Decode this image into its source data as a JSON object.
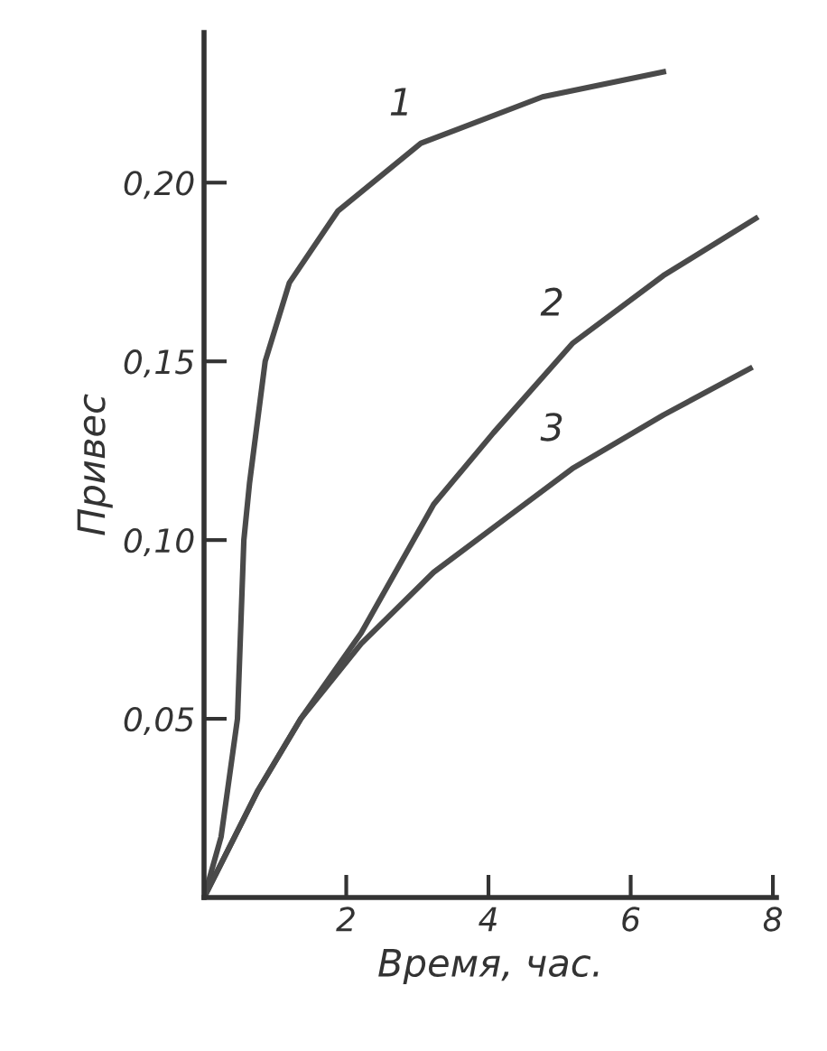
{
  "chart_data": {
    "type": "line",
    "xlabel": "Время, час.",
    "ylabel": "Привес",
    "xlim": [
      0,
      8.05
    ],
    "ylim": [
      0,
      0.242
    ],
    "xticks": [
      2,
      4,
      6,
      8
    ],
    "yticks": [
      {
        "value": 0.05,
        "label": "0,05"
      },
      {
        "value": 0.1,
        "label": "0,10"
      },
      {
        "value": 0.15,
        "label": "0,15"
      },
      {
        "value": 0.2,
        "label": "0,20"
      }
    ],
    "grid": false,
    "legend": false,
    "marker": "none",
    "line_style": "solid",
    "series": [
      {
        "name": "1",
        "color": "#4a4a4a",
        "x": [
          0,
          0.24,
          0.47,
          0.56,
          0.64,
          0.86,
          1.2,
          1.88,
          3.05,
          4.76,
          6.46
        ],
        "values": [
          0,
          0.017,
          0.05,
          0.1,
          0.116,
          0.15,
          0.172,
          0.192,
          0.211,
          0.224,
          0.231
        ]
      },
      {
        "name": "2",
        "color": "#4a4a4a",
        "x": [
          0,
          0.76,
          1.36,
          2.21,
          3.23,
          4.07,
          5.18,
          6.46,
          7.76
        ],
        "values": [
          0,
          0.03,
          0.05,
          0.074,
          0.11,
          0.13,
          0.155,
          0.174,
          0.19
        ]
      },
      {
        "name": "3",
        "color": "#4a4a4a",
        "x": [
          0,
          0.76,
          1.36,
          2.21,
          3.23,
          4.17,
          5.18,
          6.46,
          7.68
        ],
        "values": [
          0,
          0.03,
          0.05,
          0.071,
          0.091,
          0.105,
          0.12,
          0.135,
          0.148
        ]
      }
    ]
  }
}
